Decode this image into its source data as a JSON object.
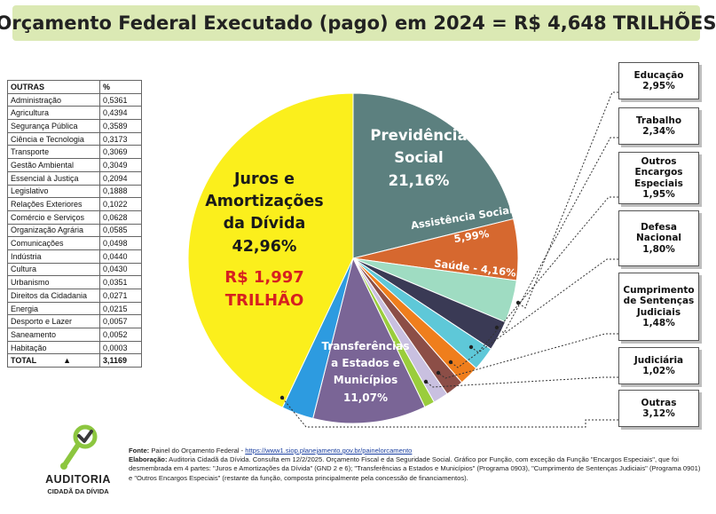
{
  "header": {
    "title": "Orçamento Federal Executado (pago) em 2024 = R$ 4,648 TRILHÕES"
  },
  "others_table": {
    "col_name": "OUTRAS",
    "col_pct": "%",
    "rows": [
      {
        "name": "Administração",
        "pct": "0,5361"
      },
      {
        "name": "Agricultura",
        "pct": "0,4394"
      },
      {
        "name": "Segurança Pública",
        "pct": "0,3589"
      },
      {
        "name": "Ciência e Tecnologia",
        "pct": "0,3173"
      },
      {
        "name": "Transporte",
        "pct": "0,3069"
      },
      {
        "name": "Gestão Ambiental",
        "pct": "0,3049"
      },
      {
        "name": "Essencial à Justiça",
        "pct": "0,2094"
      },
      {
        "name": "Legislativo",
        "pct": "0,1888"
      },
      {
        "name": "Relações Exteriores",
        "pct": "0,1022"
      },
      {
        "name": "Comércio e Serviços",
        "pct": "0,0628"
      },
      {
        "name": "Organização Agrária",
        "pct": "0,0585"
      },
      {
        "name": "Comunicações",
        "pct": "0,0498"
      },
      {
        "name": "Indústria",
        "pct": "0,0440"
      },
      {
        "name": "Cultura",
        "pct": "0,0430"
      },
      {
        "name": "Urbanismo",
        "pct": "0,0351"
      },
      {
        "name": "Direitos da Cidadania",
        "pct": "0,0271"
      },
      {
        "name": "Energia",
        "pct": "0,0215"
      },
      {
        "name": "Desporto e Lazer",
        "pct": "0,0057"
      },
      {
        "name": "Saneamento",
        "pct": "0,0052"
      },
      {
        "name": "Habitação",
        "pct": "0,0003"
      }
    ],
    "total_label": "TOTAL",
    "total_arrow": "▲",
    "total_value": "3,1169"
  },
  "chart_data": {
    "type": "pie",
    "title": "Orçamento Federal Executado (pago) em 2024 = R$ 4,648 TRILHÕES",
    "slices": [
      {
        "key": "juros",
        "name": "Juros e Amortizações da Dívida",
        "value": 42.96,
        "pct_label": "42,96%",
        "color": "#fbef1c"
      },
      {
        "key": "previdencia",
        "name": "Previdência Social",
        "value": 21.16,
        "pct_label": "21,16%",
        "color": "#5c807f"
      },
      {
        "key": "assistencia",
        "name": "Assistência Social",
        "value": 5.99,
        "pct_label": "5,99%",
        "color": "#d6682f"
      },
      {
        "key": "saude",
        "name": "Saúde",
        "value": 4.16,
        "pct_label": "4,16%",
        "color": "#9fdcc2"
      },
      {
        "key": "educacao",
        "name": "Educação",
        "value": 2.95,
        "pct_label": "2,95%",
        "color": "#3a3a55"
      },
      {
        "key": "trabalho",
        "name": "Trabalho",
        "value": 2.34,
        "pct_label": "2,34%",
        "color": "#5ec8d8"
      },
      {
        "key": "outros_encargos",
        "name": "Outros Encargos Especiais",
        "value": 1.95,
        "pct_label": "1,95%",
        "color": "#ef7e1c"
      },
      {
        "key": "defesa",
        "name": "Defesa Nacional",
        "value": 1.8,
        "pct_label": "1,80%",
        "color": "#8c4e47"
      },
      {
        "key": "sentencas",
        "name": "Cumprimento de Sentenças Judiciais",
        "value": 1.48,
        "pct_label": "1,48%",
        "color": "#c9c0e0"
      },
      {
        "key": "judiciaria",
        "name": "Judiciária",
        "value": 1.02,
        "pct_label": "1,02%",
        "color": "#9acd3c"
      },
      {
        "key": "transferencias",
        "name": "Transferências a Estados e Municípios",
        "value": 11.07,
        "pct_label": "11,07%",
        "color": "#7a6596"
      },
      {
        "key": "outras",
        "name": "Outras",
        "value": 3.12,
        "pct_label": "3,12%",
        "color": "#2d9be0"
      }
    ],
    "labels": {
      "juros_l1": "Juros e",
      "juros_l2": "Amortizações",
      "juros_l3": "da Dívida",
      "juros_pct": "42,96%",
      "juros_amount_l1": "R$ 1,997",
      "juros_amount_l2": "TRILHÃO",
      "prev_l1": "Previdência",
      "prev_l2": "Social",
      "prev_pct": "21,16%",
      "assist_l1": "Assistência Social",
      "assist_pct": "5,99%",
      "saude": "Saúde - 4,16%",
      "transf_l1": "Transferências",
      "transf_l2": "a Estados e",
      "transf_l3": "Municípios",
      "transf_pct": "11,07%"
    },
    "callouts": [
      {
        "lines": [
          "Educação"
        ],
        "pct": "2,95%"
      },
      {
        "lines": [
          "Trabalho"
        ],
        "pct": "2,34%"
      },
      {
        "lines": [
          "Outros Encargos",
          "Especiais"
        ],
        "pct": "1,95%"
      },
      {
        "lines": [
          "Defesa",
          "Nacional"
        ],
        "pct": "1,80%"
      },
      {
        "lines": [
          "Cumprimento",
          "de Sentenças",
          "Judiciais"
        ],
        "pct": "1,48%"
      },
      {
        "lines": [
          "Judiciária"
        ],
        "pct": "1,02%"
      },
      {
        "lines": [
          "Outras"
        ],
        "pct": "3,12%"
      }
    ]
  },
  "logo": {
    "icon": "magnifier-checkmark-icon",
    "name": "AUDITORIA",
    "subtitle": "CIDADÃ DA DÍVIDA"
  },
  "footer": {
    "fonte_label": "Fonte:",
    "fonte_text": "Painel do Orçamento Federal - ",
    "fonte_link": "https://www1.siop.planejamento.gov.br/painelorcamento",
    "elab_label": "Elaboração:",
    "elab_text": "Auditoria Cidadã da Dívida. Consulta em 12/2/2025. Orçamento Fiscal e da Seguridade Social. Gráfico por Função, com exceção da Função \"Encargos Especiais\", que foi desmembrada em 4 partes: \"Juros e Amortizações da Dívida\" (GND 2 e 6); \"Transferências a Estados e Municípios\" (Programa 0903), \"Cumprimento de Sentenças Judiciais\" (Programa 0901) e \"Outros Encargos Especiais\" (restante da função, composta principalmente pela concessão de financiamentos)."
  }
}
